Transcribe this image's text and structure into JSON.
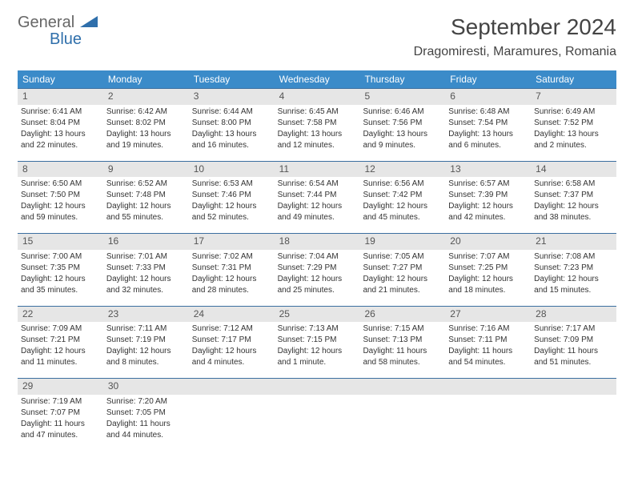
{
  "brand": {
    "general": "General",
    "blue": "Blue"
  },
  "title": "September 2024",
  "location": "Dragomiresti, Maramures, Romania",
  "colors": {
    "header_bg": "#3b8bc9",
    "header_text": "#ffffff",
    "daynum_bg": "#e6e6e6",
    "daynum_border": "#3b6fa0",
    "text": "#333333",
    "logo_gray": "#666666",
    "logo_blue": "#2f6fab",
    "logo_triangle": "#2f6fab",
    "background": "#ffffff"
  },
  "typography": {
    "title_fontsize": 28,
    "location_fontsize": 16,
    "dayhead_fontsize": 12,
    "daynum_fontsize": 12,
    "body_fontsize": 10,
    "logo_fontsize": 20
  },
  "day_names": [
    "Sunday",
    "Monday",
    "Tuesday",
    "Wednesday",
    "Thursday",
    "Friday",
    "Saturday"
  ],
  "weeks": [
    [
      {
        "n": "1",
        "sr": "Sunrise: 6:41 AM",
        "ss": "Sunset: 8:04 PM",
        "dl1": "Daylight: 13 hours",
        "dl2": "and 22 minutes."
      },
      {
        "n": "2",
        "sr": "Sunrise: 6:42 AM",
        "ss": "Sunset: 8:02 PM",
        "dl1": "Daylight: 13 hours",
        "dl2": "and 19 minutes."
      },
      {
        "n": "3",
        "sr": "Sunrise: 6:44 AM",
        "ss": "Sunset: 8:00 PM",
        "dl1": "Daylight: 13 hours",
        "dl2": "and 16 minutes."
      },
      {
        "n": "4",
        "sr": "Sunrise: 6:45 AM",
        "ss": "Sunset: 7:58 PM",
        "dl1": "Daylight: 13 hours",
        "dl2": "and 12 minutes."
      },
      {
        "n": "5",
        "sr": "Sunrise: 6:46 AM",
        "ss": "Sunset: 7:56 PM",
        "dl1": "Daylight: 13 hours",
        "dl2": "and 9 minutes."
      },
      {
        "n": "6",
        "sr": "Sunrise: 6:48 AM",
        "ss": "Sunset: 7:54 PM",
        "dl1": "Daylight: 13 hours",
        "dl2": "and 6 minutes."
      },
      {
        "n": "7",
        "sr": "Sunrise: 6:49 AM",
        "ss": "Sunset: 7:52 PM",
        "dl1": "Daylight: 13 hours",
        "dl2": "and 2 minutes."
      }
    ],
    [
      {
        "n": "8",
        "sr": "Sunrise: 6:50 AM",
        "ss": "Sunset: 7:50 PM",
        "dl1": "Daylight: 12 hours",
        "dl2": "and 59 minutes."
      },
      {
        "n": "9",
        "sr": "Sunrise: 6:52 AM",
        "ss": "Sunset: 7:48 PM",
        "dl1": "Daylight: 12 hours",
        "dl2": "and 55 minutes."
      },
      {
        "n": "10",
        "sr": "Sunrise: 6:53 AM",
        "ss": "Sunset: 7:46 PM",
        "dl1": "Daylight: 12 hours",
        "dl2": "and 52 minutes."
      },
      {
        "n": "11",
        "sr": "Sunrise: 6:54 AM",
        "ss": "Sunset: 7:44 PM",
        "dl1": "Daylight: 12 hours",
        "dl2": "and 49 minutes."
      },
      {
        "n": "12",
        "sr": "Sunrise: 6:56 AM",
        "ss": "Sunset: 7:42 PM",
        "dl1": "Daylight: 12 hours",
        "dl2": "and 45 minutes."
      },
      {
        "n": "13",
        "sr": "Sunrise: 6:57 AM",
        "ss": "Sunset: 7:39 PM",
        "dl1": "Daylight: 12 hours",
        "dl2": "and 42 minutes."
      },
      {
        "n": "14",
        "sr": "Sunrise: 6:58 AM",
        "ss": "Sunset: 7:37 PM",
        "dl1": "Daylight: 12 hours",
        "dl2": "and 38 minutes."
      }
    ],
    [
      {
        "n": "15",
        "sr": "Sunrise: 7:00 AM",
        "ss": "Sunset: 7:35 PM",
        "dl1": "Daylight: 12 hours",
        "dl2": "and 35 minutes."
      },
      {
        "n": "16",
        "sr": "Sunrise: 7:01 AM",
        "ss": "Sunset: 7:33 PM",
        "dl1": "Daylight: 12 hours",
        "dl2": "and 32 minutes."
      },
      {
        "n": "17",
        "sr": "Sunrise: 7:02 AM",
        "ss": "Sunset: 7:31 PM",
        "dl1": "Daylight: 12 hours",
        "dl2": "and 28 minutes."
      },
      {
        "n": "18",
        "sr": "Sunrise: 7:04 AM",
        "ss": "Sunset: 7:29 PM",
        "dl1": "Daylight: 12 hours",
        "dl2": "and 25 minutes."
      },
      {
        "n": "19",
        "sr": "Sunrise: 7:05 AM",
        "ss": "Sunset: 7:27 PM",
        "dl1": "Daylight: 12 hours",
        "dl2": "and 21 minutes."
      },
      {
        "n": "20",
        "sr": "Sunrise: 7:07 AM",
        "ss": "Sunset: 7:25 PM",
        "dl1": "Daylight: 12 hours",
        "dl2": "and 18 minutes."
      },
      {
        "n": "21",
        "sr": "Sunrise: 7:08 AM",
        "ss": "Sunset: 7:23 PM",
        "dl1": "Daylight: 12 hours",
        "dl2": "and 15 minutes."
      }
    ],
    [
      {
        "n": "22",
        "sr": "Sunrise: 7:09 AM",
        "ss": "Sunset: 7:21 PM",
        "dl1": "Daylight: 12 hours",
        "dl2": "and 11 minutes."
      },
      {
        "n": "23",
        "sr": "Sunrise: 7:11 AM",
        "ss": "Sunset: 7:19 PM",
        "dl1": "Daylight: 12 hours",
        "dl2": "and 8 minutes."
      },
      {
        "n": "24",
        "sr": "Sunrise: 7:12 AM",
        "ss": "Sunset: 7:17 PM",
        "dl1": "Daylight: 12 hours",
        "dl2": "and 4 minutes."
      },
      {
        "n": "25",
        "sr": "Sunrise: 7:13 AM",
        "ss": "Sunset: 7:15 PM",
        "dl1": "Daylight: 12 hours",
        "dl2": "and 1 minute."
      },
      {
        "n": "26",
        "sr": "Sunrise: 7:15 AM",
        "ss": "Sunset: 7:13 PM",
        "dl1": "Daylight: 11 hours",
        "dl2": "and 58 minutes."
      },
      {
        "n": "27",
        "sr": "Sunrise: 7:16 AM",
        "ss": "Sunset: 7:11 PM",
        "dl1": "Daylight: 11 hours",
        "dl2": "and 54 minutes."
      },
      {
        "n": "28",
        "sr": "Sunrise: 7:17 AM",
        "ss": "Sunset: 7:09 PM",
        "dl1": "Daylight: 11 hours",
        "dl2": "and 51 minutes."
      }
    ],
    [
      {
        "n": "29",
        "sr": "Sunrise: 7:19 AM",
        "ss": "Sunset: 7:07 PM",
        "dl1": "Daylight: 11 hours",
        "dl2": "and 47 minutes."
      },
      {
        "n": "30",
        "sr": "Sunrise: 7:20 AM",
        "ss": "Sunset: 7:05 PM",
        "dl1": "Daylight: 11 hours",
        "dl2": "and 44 minutes."
      },
      null,
      null,
      null,
      null,
      null
    ]
  ]
}
